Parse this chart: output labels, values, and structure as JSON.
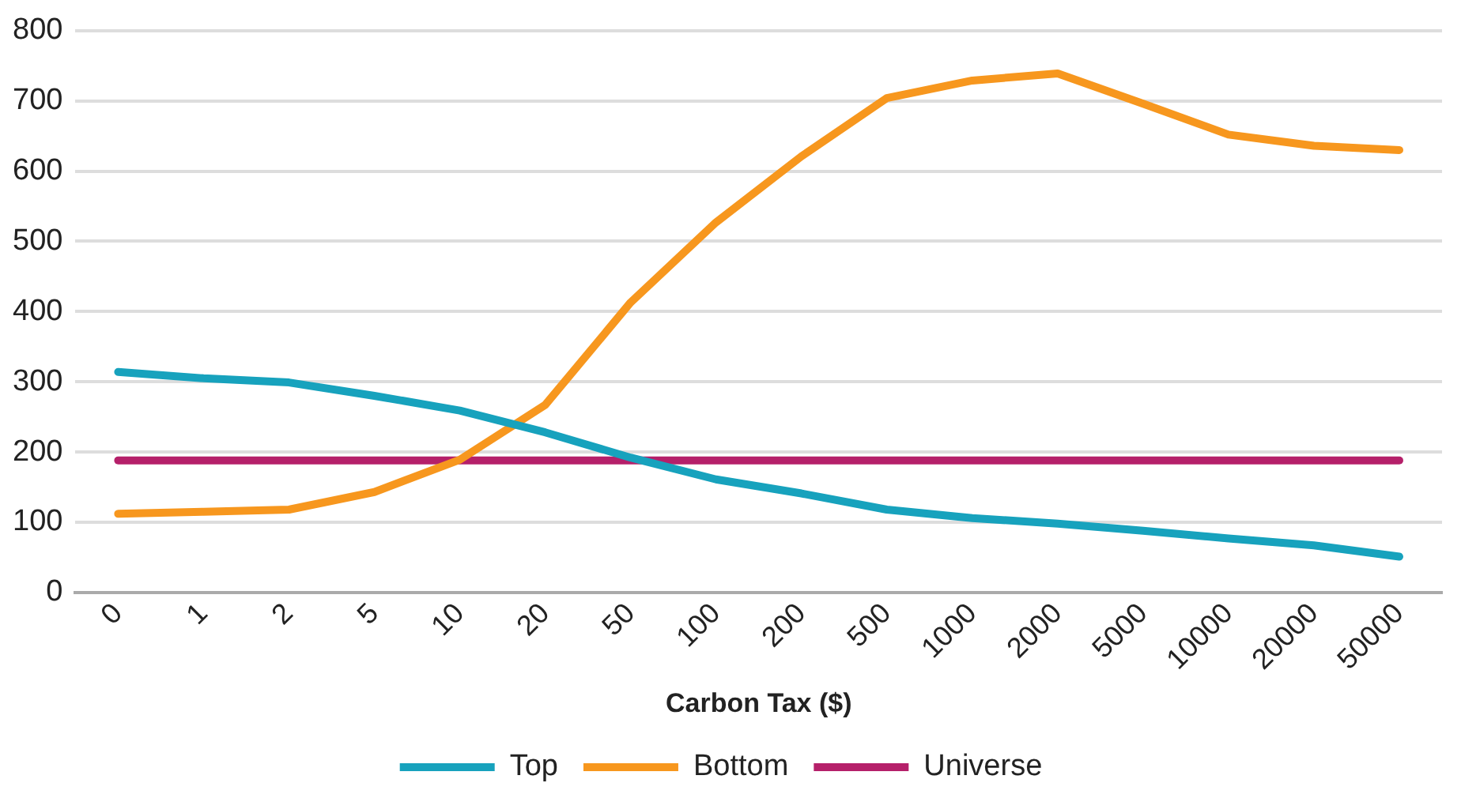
{
  "chart_data": {
    "type": "line",
    "xlabel": "Carbon Tax ($)",
    "categories": [
      "0",
      "1",
      "2",
      "5",
      "10",
      "20",
      "50",
      "100",
      "200",
      "500",
      "1000",
      "2000",
      "5000",
      "10000",
      "20000",
      "50000"
    ],
    "series": [
      {
        "name": "Top",
        "color": "#17a2bd",
        "values": [
          314,
          305,
          299,
          280,
          259,
          228,
          192,
          161,
          141,
          118,
          106,
          98,
          88,
          77,
          67,
          51
        ]
      },
      {
        "name": "Bottom",
        "color": "#f7971e",
        "values": [
          112,
          115,
          118,
          143,
          189,
          267,
          413,
          527,
          621,
          704,
          729,
          739,
          696,
          652,
          636,
          630
        ]
      },
      {
        "name": "Universe",
        "color": "#b5206a",
        "values": [
          188,
          188,
          188,
          188,
          188,
          188,
          188,
          188,
          188,
          188,
          188,
          188,
          188,
          188,
          188,
          188
        ]
      }
    ],
    "ylim": [
      0,
      800
    ],
    "yticks": [
      0,
      100,
      200,
      300,
      400,
      500,
      600,
      700,
      800
    ],
    "grid": "y",
    "legend": "bottom",
    "marker": "none",
    "line_style": "solid"
  }
}
